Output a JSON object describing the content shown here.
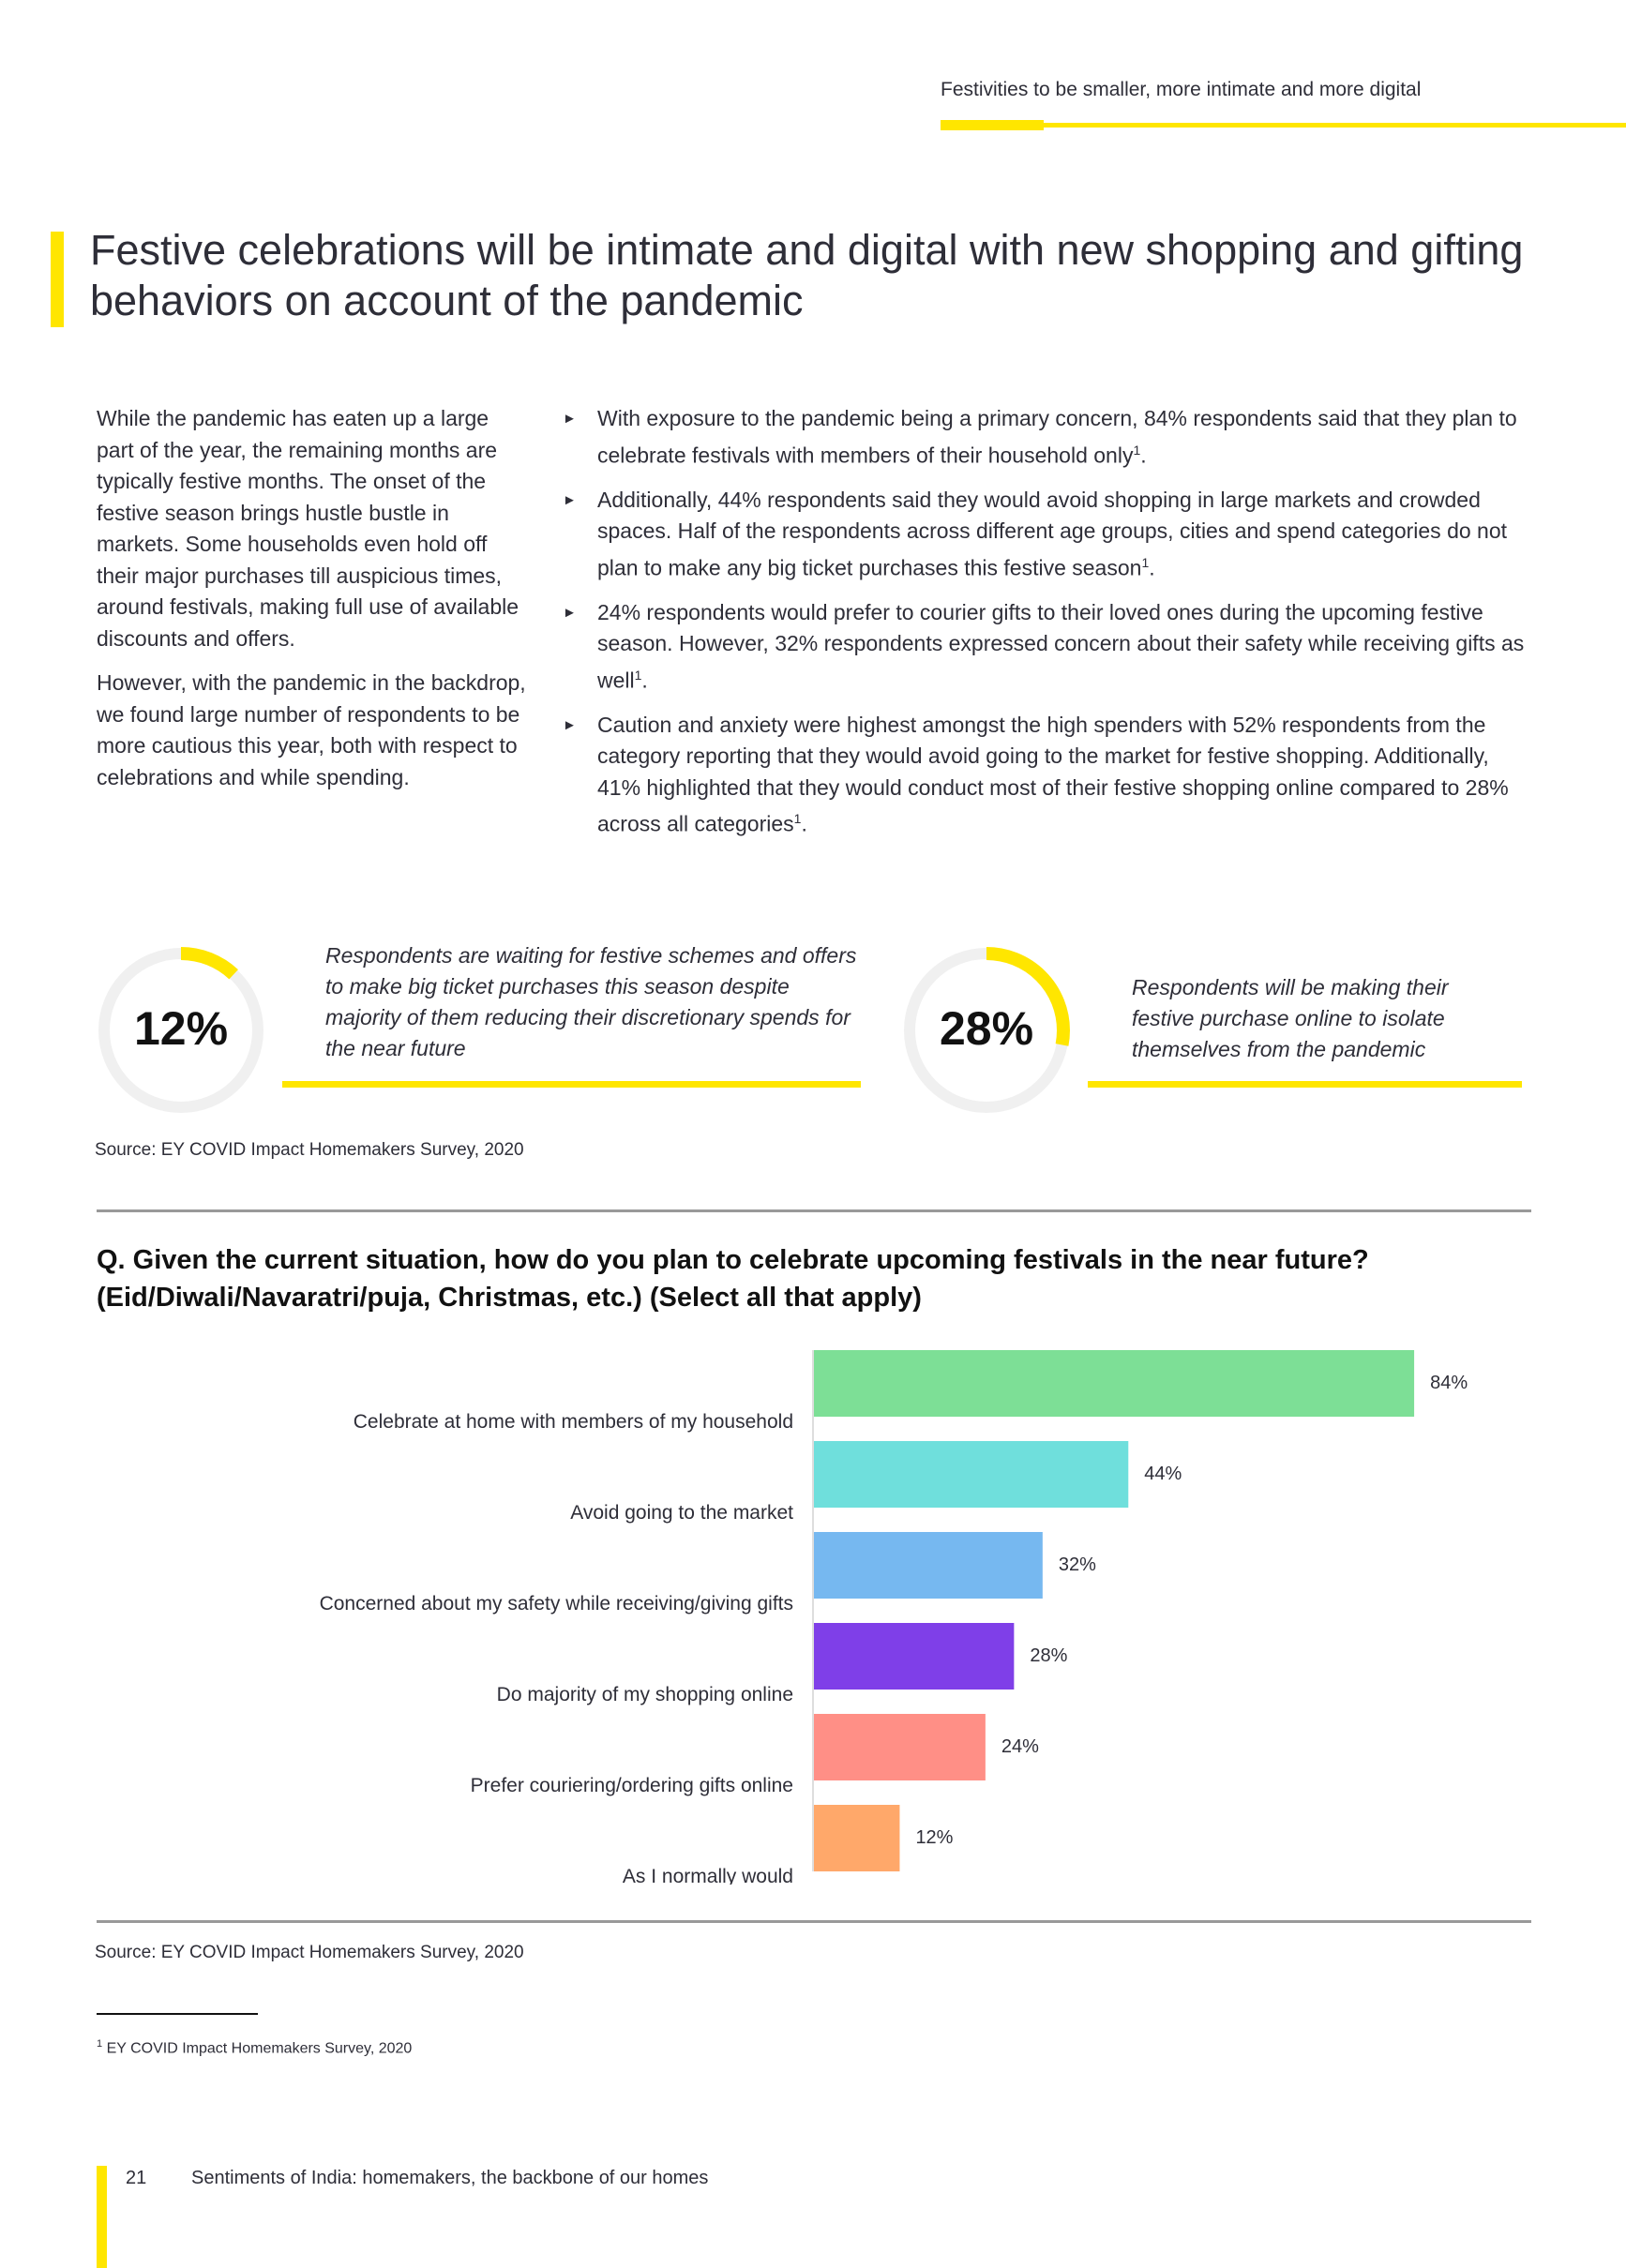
{
  "header": {
    "section": "Festivities to be smaller, more intimate and more digital"
  },
  "title": "Festive celebrations will be intimate and digital with new shopping and gifting behaviors on account of the pandemic",
  "intro": [
    "While the pandemic has eaten up a large part of the year, the remaining months are typically festive months. The onset of the festive season brings hustle bustle in markets. Some households even hold off their major purchases till auspicious times, around festivals, making full use of available discounts and offers.",
    "However, with the pandemic in the backdrop, we found large number of respondents to be more cautious this year, both with respect to celebrations and while spending."
  ],
  "bullets": [
    {
      "text": "With exposure to the pandemic being a primary concern, 84% respondents said that they plan to celebrate festivals with members of their household only",
      "sup": "1",
      "end": "."
    },
    {
      "text": "Additionally, 44% respondents said they would avoid shopping in large markets and crowded spaces. Half of the respondents across different age groups, cities and spend categories do not plan to make any big ticket purchases this festive season",
      "sup": "1",
      "end": "."
    },
    {
      "text": "24% respondents would prefer to courier gifts to their loved ones during the upcoming festive season. However, 32% respondents expressed concern about their safety while receiving gifts as well",
      "sup": "1",
      "end": "."
    },
    {
      "text": "Caution and anxiety were highest amongst the high spenders with 52% respondents from the category reporting that they would avoid going to the market for festive shopping. Additionally, 41% highlighted that they would conduct most of their festive shopping online compared to 28% across all categories",
      "sup": "1",
      "end": "."
    }
  ],
  "stats": [
    {
      "value": "12%",
      "percent": 12,
      "text": "Respondents are waiting for festive schemes and offers to make big ticket purchases this season despite majority of them reducing their discretionary spends for the near future"
    },
    {
      "value": "28%",
      "percent": 28,
      "text": "Respondents will be making their festive purchase online to isolate themselves from the pandemic"
    }
  ],
  "source1": "Source: EY COVID Impact Homemakers Survey, 2020",
  "question": "Q. Given the current situation, how do you plan to celebrate upcoming festivals in the near future? (Eid/Diwali/Navaratri/puja, Christmas, etc.) (Select all that apply)",
  "chart_data": {
    "type": "bar",
    "orientation": "horizontal",
    "categories": [
      "Celebrate at home with members of my household",
      "Avoid going to the market",
      "Concerned about my safety while receiving/giving gifts",
      "Do majority of my shopping online",
      "Prefer couriering/ordering gifts online",
      "As I normally would"
    ],
    "values": [
      84,
      44,
      32,
      28,
      24,
      12
    ],
    "labels": [
      "84%",
      "44%",
      "32%",
      "28%",
      "24%",
      "12%"
    ],
    "colors": [
      "#7ddf96",
      "#6fdfdc",
      "#76b8f0",
      "#7f3fe8",
      "#ff8f86",
      "#ffa86a"
    ],
    "grid": false
  },
  "source2": "Source: EY COVID Impact Homemakers Survey, 2020",
  "footnote": {
    "num": "1",
    "text": "EY COVID Impact Homemakers Survey, 2020"
  },
  "footer": {
    "page": "21",
    "text": "Sentiments of India: homemakers, the backbone of our homes"
  },
  "colors": {
    "accent": "#ffe600"
  }
}
